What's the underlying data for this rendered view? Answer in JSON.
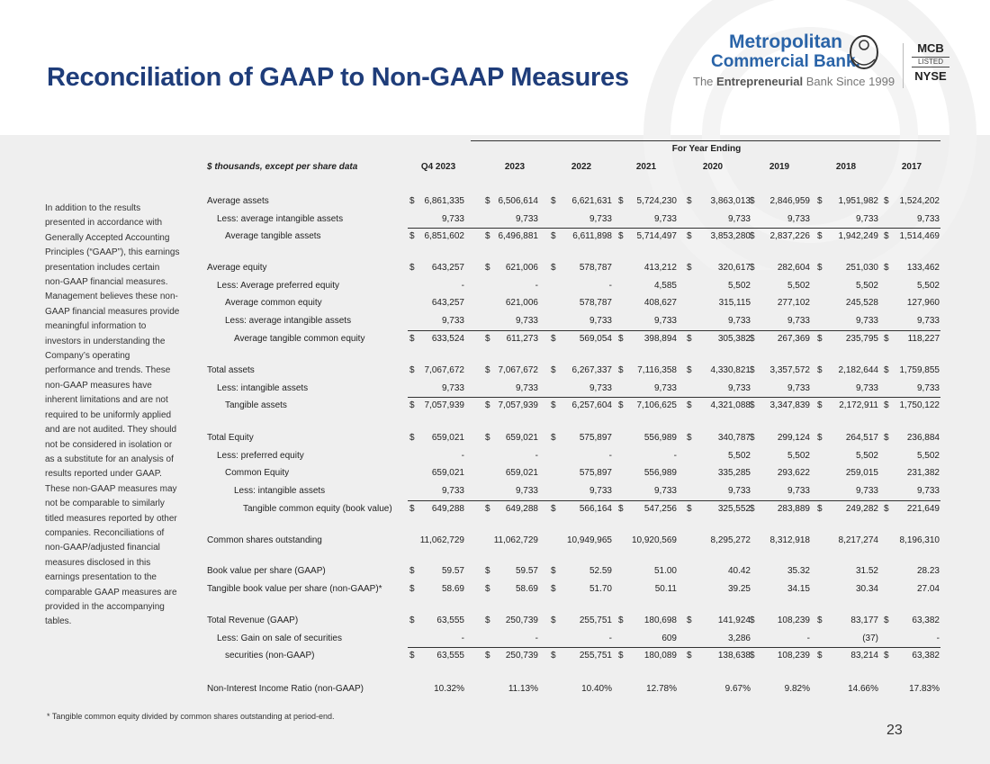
{
  "header": {
    "title": "Reconciliation of GAAP to Non-GAAP Measures",
    "logo": {
      "line1": "Metropolitan",
      "line2": "Commercial Bank.",
      "tagline": [
        "The",
        "Entrepreneurial",
        "Bank Since 1999"
      ]
    },
    "ticker": {
      "symbol": "MCB",
      "listed": "LISTED",
      "exchange": "NYSE"
    }
  },
  "sidebar": "In addition to the results presented in accordance with Generally Accepted Accounting Principles (“GAAP”), this earnings presentation includes certain non-GAAP financial measures. Management believes these non-GAAP financial measures provide meaningful information to investors in understanding the Company’s operating performance and trends. These non-GAAP measures have inherent limitations and are not required to be uniformly applied and are not audited. They should not be considered in isolation or as a substitute for an analysis of results reported under GAAP. These non-GAAP measures may not be comparable to similarly titled measures reported by other companies. Reconciliations of non-GAAP/adjusted financial measures disclosed in this earnings presentation to the comparable GAAP measures are provided in the accompanying tables.",
  "table": {
    "unit_label": "$ thousands, except per share data",
    "group_header": "For Year Ending",
    "columns": [
      "Q4 2023",
      "2023",
      "2022",
      "2021",
      "2020",
      "2019",
      "2018",
      "2017"
    ],
    "groups": [
      {
        "rows": [
          {
            "label": "Average assets",
            "currency": [
              "$",
              "$",
              "$",
              "$",
              "$",
              "$",
              "$",
              "$"
            ],
            "values": [
              "6,861,335",
              "6,506,614",
              "6,621,631",
              "5,724,230",
              "3,863,013",
              "2,846,959",
              "1,951,982",
              "1,524,202"
            ]
          },
          {
            "label": "Less: average intangible assets",
            "values": [
              "9,733",
              "9,733",
              "9,733",
              "9,733",
              "9,733",
              "9,733",
              "9,733",
              "9,733"
            ]
          },
          {
            "label": "Average tangible assets",
            "currency": [
              "$",
              "$",
              "$",
              "$",
              "$",
              "$",
              "$",
              "$"
            ],
            "values": [
              "6,851,602",
              "6,496,881",
              "6,611,898",
              "5,714,497",
              "3,853,280",
              "2,837,226",
              "1,942,249",
              "1,514,469"
            ]
          }
        ]
      },
      {
        "rows": [
          {
            "label": "Average equity",
            "currency": [
              "$",
              "$",
              "$",
              null,
              "$",
              "$",
              "$",
              "$"
            ],
            "values": [
              "643,257",
              "621,006",
              "578,787",
              "413,212",
              "320,617",
              "282,604",
              "251,030",
              "133,462"
            ]
          },
          {
            "label": "Less: Average preferred equity",
            "values": [
              "-",
              "-",
              "-",
              "4,585",
              "5,502",
              "5,502",
              "5,502",
              "5,502"
            ]
          },
          {
            "label": "Average common equity",
            "values": [
              "643,257",
              "621,006",
              "578,787",
              "408,627",
              "315,115",
              "277,102",
              "245,528",
              "127,960"
            ]
          },
          {
            "label": "Less: average intangible assets",
            "values": [
              "9,733",
              "9,733",
              "9,733",
              "9,733",
              "9,733",
              "9,733",
              "9,733",
              "9,733"
            ]
          },
          {
            "label": "Average tangible common equity",
            "currency": [
              "$",
              "$",
              "$",
              "$",
              "$",
              "$",
              "$",
              "$"
            ],
            "values": [
              "633,524",
              "611,273",
              "569,054",
              "398,894",
              "305,382",
              "267,369",
              "235,795",
              "118,227"
            ]
          }
        ]
      },
      {
        "rows": [
          {
            "label": "Total assets",
            "currency": [
              "$",
              "$",
              "$",
              "$",
              "$",
              "$",
              "$",
              "$"
            ],
            "values": [
              "7,067,672",
              "7,067,672",
              "6,267,337",
              "7,116,358",
              "4,330,821",
              "3,357,572",
              "2,182,644",
              "1,759,855"
            ]
          },
          {
            "label": "Less: intangible assets",
            "values": [
              "9,733",
              "9,733",
              "9,733",
              "9,733",
              "9,733",
              "9,733",
              "9,733",
              "9,733"
            ]
          },
          {
            "label": "Tangible assets",
            "currency": [
              "$",
              "$",
              "$",
              "$",
              "$",
              "$",
              "$",
              "$"
            ],
            "values": [
              "7,057,939",
              "7,057,939",
              "6,257,604",
              "7,106,625",
              "4,321,088",
              "3,347,839",
              "2,172,911",
              "1,750,122"
            ]
          }
        ]
      },
      {
        "rows": [
          {
            "label": "Total Equity",
            "currency": [
              "$",
              "$",
              "$",
              null,
              "$",
              "$",
              "$",
              "$"
            ],
            "values": [
              "659,021",
              "659,021",
              "575,897",
              "556,989",
              "340,787",
              "299,124",
              "264,517",
              "236,884"
            ]
          },
          {
            "label": "Less: preferred equity",
            "values": [
              "-",
              "-",
              "-",
              "-",
              "5,502",
              "5,502",
              "5,502",
              "5,502"
            ]
          },
          {
            "label": "Common Equity",
            "values": [
              "659,021",
              "659,021",
              "575,897",
              "556,989",
              "335,285",
              "293,622",
              "259,015",
              "231,382"
            ]
          },
          {
            "label": "Less: intangible assets",
            "values": [
              "9,733",
              "9,733",
              "9,733",
              "9,733",
              "9,733",
              "9,733",
              "9,733",
              "9,733"
            ]
          },
          {
            "label": "Tangible common equity (book value)",
            "currency": [
              "$",
              "$",
              "$",
              "$",
              "$",
              "$",
              "$",
              "$"
            ],
            "values": [
              "649,288",
              "649,288",
              "566,164",
              "547,256",
              "325,552",
              "283,889",
              "249,282",
              "221,649"
            ]
          }
        ]
      },
      {
        "rows": [
          {
            "label": "Common shares outstanding",
            "values": [
              "11,062,729",
              "11,062,729",
              "10,949,965",
              "10,920,569",
              "8,295,272",
              "8,312,918",
              "8,217,274",
              "8,196,310"
            ]
          }
        ]
      },
      {
        "rows": [
          {
            "label": "Book value per share (GAAP)",
            "currency": [
              "$",
              "$",
              "$",
              null,
              null,
              null,
              null,
              null
            ],
            "values": [
              "59.57",
              "59.57",
              "52.59",
              "51.00",
              "40.42",
              "35.32",
              "31.52",
              "28.23"
            ]
          },
          {
            "label": "Tangible book value per share (non-GAAP)*",
            "currency": [
              "$",
              "$",
              "$",
              null,
              null,
              null,
              null,
              null
            ],
            "values": [
              "58.69",
              "58.69",
              "51.70",
              "50.11",
              "39.25",
              "34.15",
              "30.34",
              "27.04"
            ]
          }
        ]
      },
      {
        "rows": [
          {
            "label": "Total Revenue (GAAP)",
            "currency": [
              "$",
              "$",
              "$",
              "$",
              "$",
              "$",
              "$",
              "$"
            ],
            "values": [
              "63,555",
              "250,739",
              "255,751",
              "180,698",
              "141,924",
              "108,239",
              "83,177",
              "63,382"
            ]
          },
          {
            "label": "Less: Gain on sale of securities",
            "values": [
              "-",
              "-",
              "-",
              "609",
              "3,286",
              "-",
              "(37)",
              "-"
            ]
          },
          {
            "label": "securities (non-GAAP)",
            "currency": [
              "$",
              "$",
              "$",
              "$",
              "$",
              "$",
              "$",
              "$"
            ],
            "values": [
              "63,555",
              "250,739",
              "255,751",
              "180,089",
              "138,638",
              "108,239",
              "83,214",
              "63,382"
            ]
          }
        ]
      },
      {
        "rows": [
          {
            "label": "Non-Interest Income Ratio (non-GAAP)",
            "values": [
              "10.32%",
              "11.13%",
              "10.40%",
              "12.78%",
              "9.67%",
              "9.82%",
              "14.66%",
              "17.83%"
            ]
          }
        ]
      }
    ]
  },
  "footnote": "* Tangible common equity divided by common shares outstanding at period-end.",
  "page_number": "23"
}
